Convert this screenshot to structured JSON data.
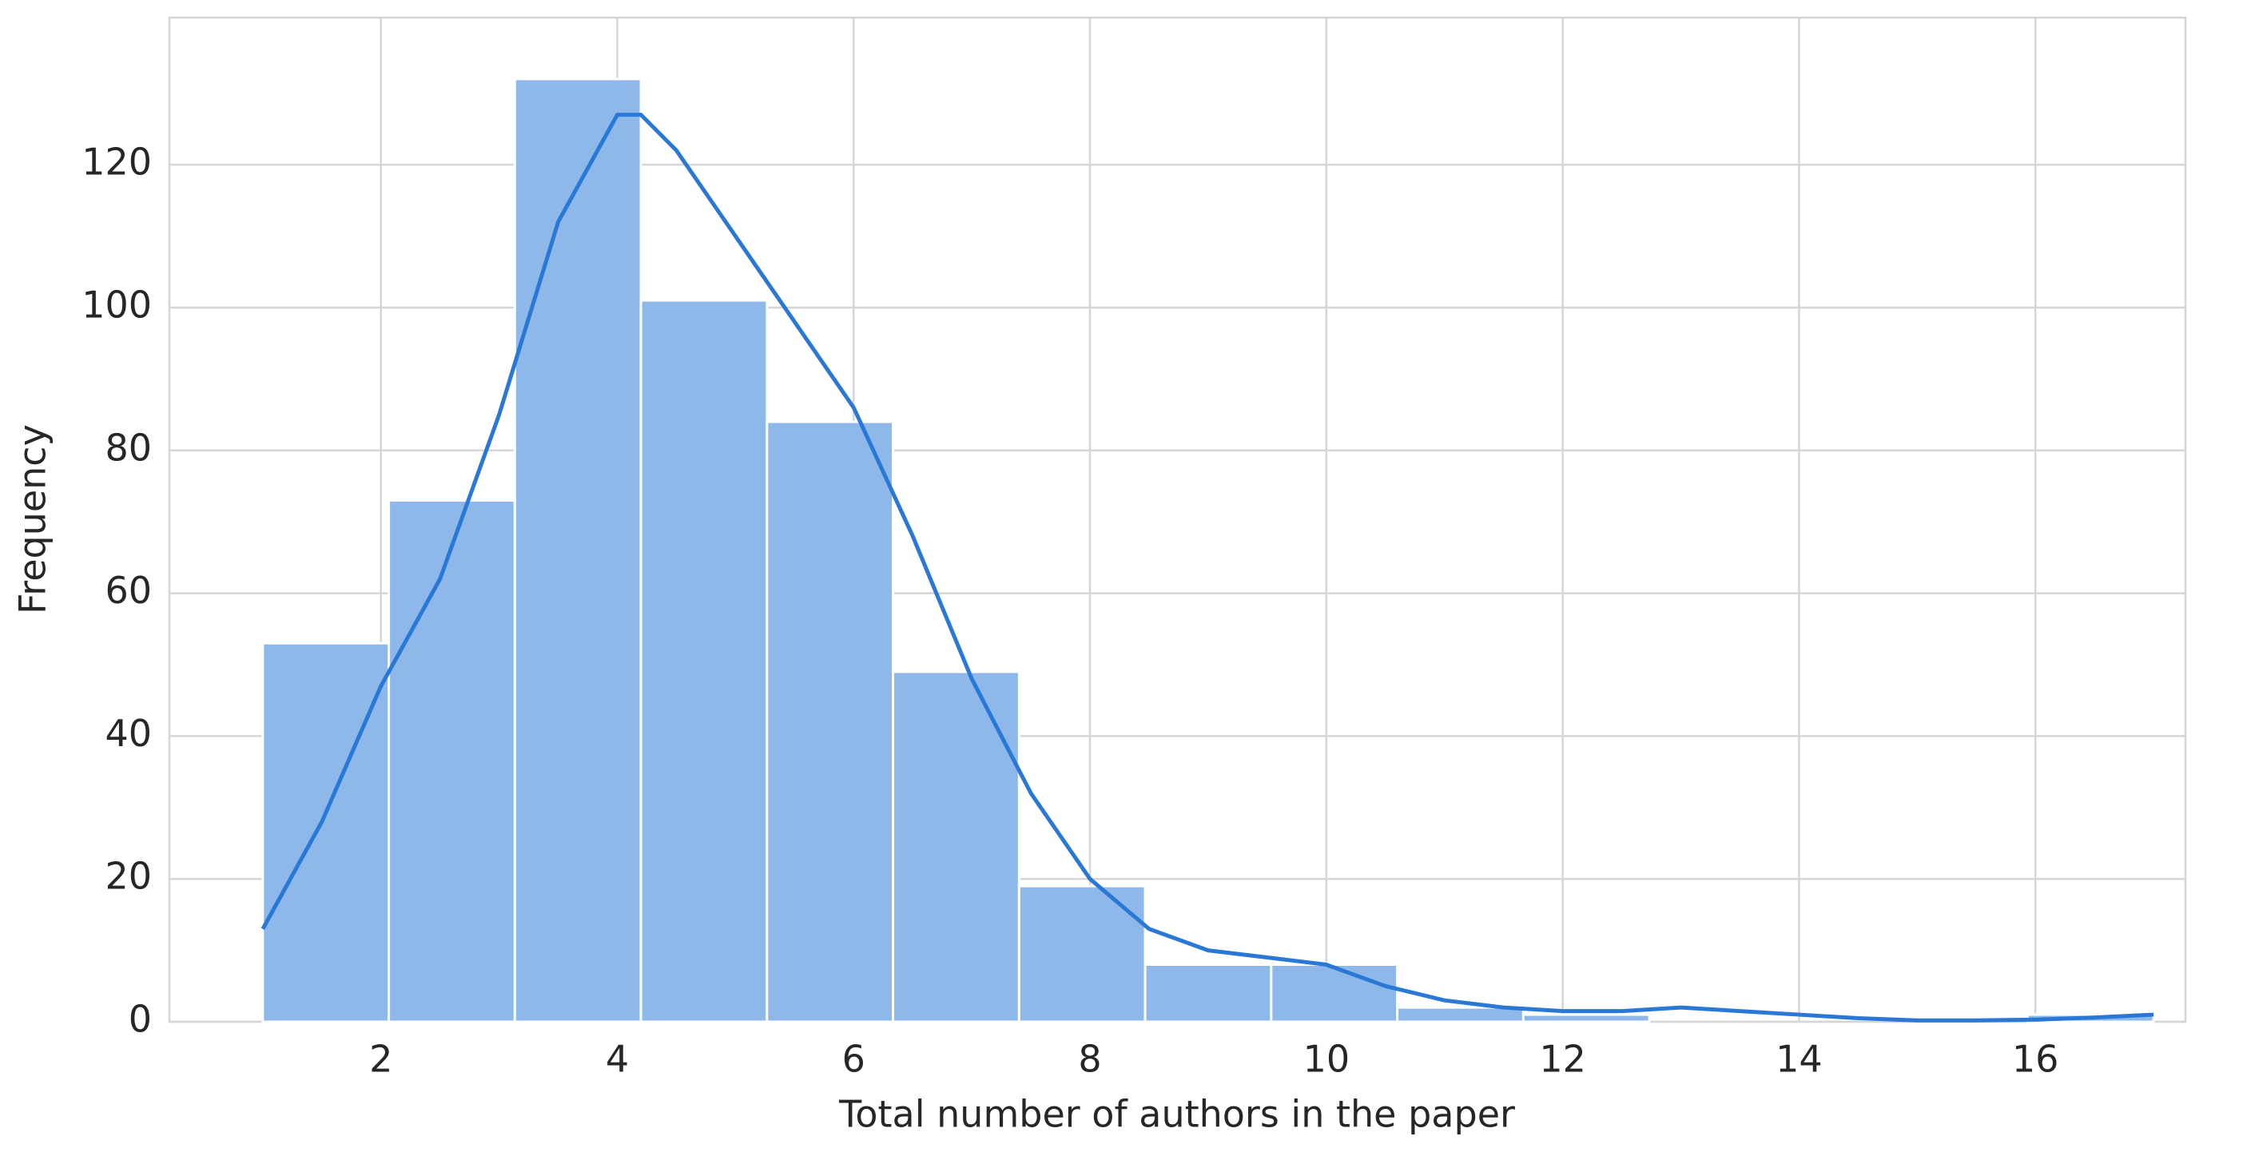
{
  "chart_data": {
    "type": "histogram",
    "xlabel": "Total number of authors in the paper",
    "ylabel": "Frequency",
    "bins": [
      1,
      2.0667,
      3.1333,
      4.2,
      5.2667,
      6.3333,
      7.4,
      8.4667,
      9.5333,
      10.6,
      11.6667,
      12.7333,
      13.8,
      14.8667,
      15.9333,
      17
    ],
    "counts": [
      53,
      73,
      132,
      101,
      84,
      49,
      19,
      8,
      8,
      2,
      1,
      0,
      0,
      0,
      1
    ],
    "color": "#8db8e9",
    "kde": {
      "color": "#2a78d6",
      "x": [
        1,
        1.5,
        2,
        2.5,
        3,
        3.5,
        4,
        4.2,
        4.5,
        5,
        5.5,
        6,
        6.5,
        7,
        7.5,
        8,
        8.5,
        9,
        9.5,
        10,
        10.5,
        11,
        11.5,
        12,
        12.5,
        13,
        13.5,
        14,
        14.5,
        15,
        15.5,
        16,
        16.5,
        17
      ],
      "values": [
        13,
        28,
        47,
        62,
        85,
        112,
        127,
        127,
        122,
        110,
        98,
        86,
        68,
        48,
        32,
        20,
        13,
        10,
        9,
        8,
        5,
        3,
        2,
        1.5,
        1.5,
        2,
        1.5,
        1,
        0.5,
        0.2,
        0.2,
        0.3,
        0.6,
        1
      ]
    },
    "xlim": [
      0.21,
      17.27
    ],
    "ylim": [
      0,
      140.6
    ],
    "xticks": [
      2,
      4,
      6,
      8,
      10,
      12,
      14,
      16
    ],
    "yticks": [
      0,
      20,
      40,
      60,
      80,
      100,
      120
    ],
    "grid": true
  }
}
